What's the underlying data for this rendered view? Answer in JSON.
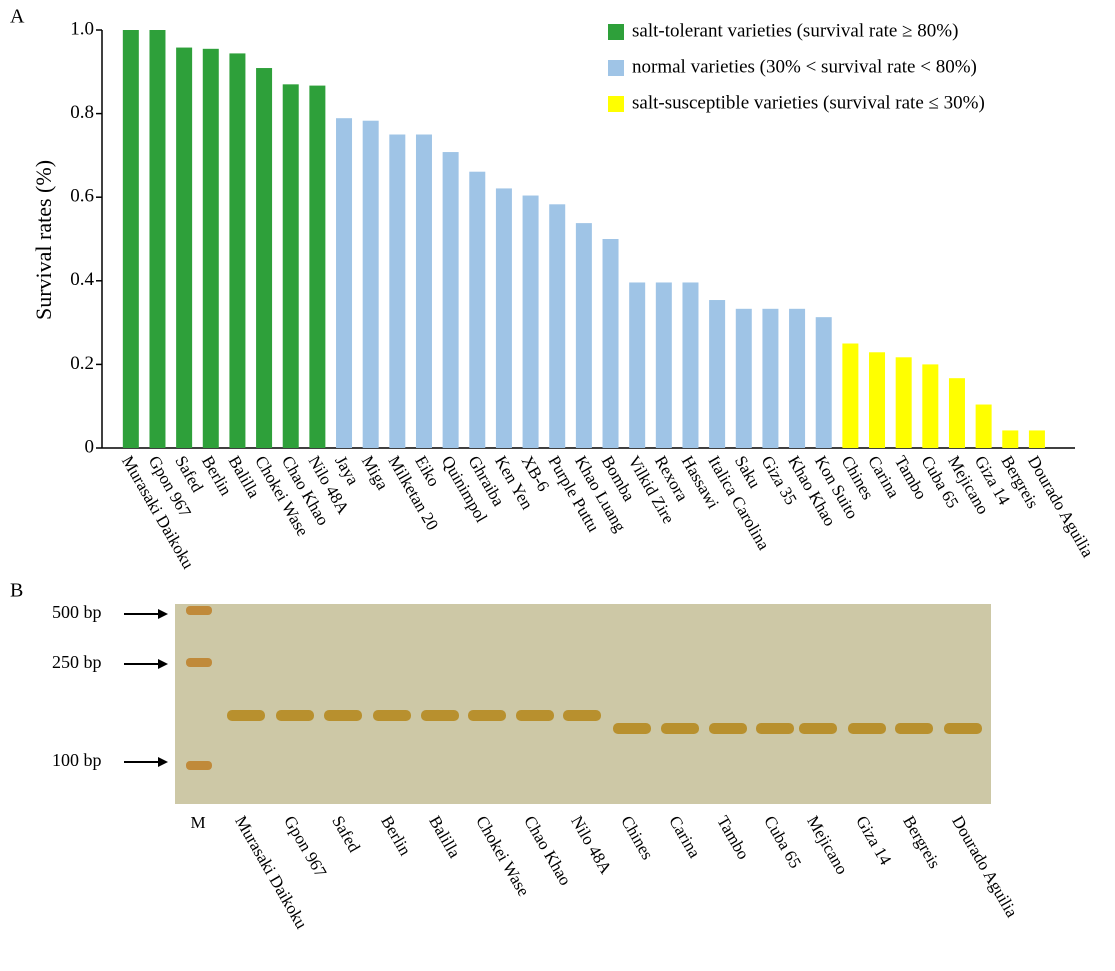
{
  "panel_labels": [
    "A",
    "B"
  ],
  "chart_data": {
    "type": "bar",
    "y_label": "Survival rates (%)",
    "categories": [
      "Murasaki Daikoku",
      "Gpon 967",
      "Safed",
      "Berlin",
      "Balilla",
      "Chokei Wase",
      "Chao Khao",
      "Nilo 48A",
      "Jaya",
      "Miga",
      "Milketan 20",
      "Eiko",
      "Quinimpol",
      "Ghraiba",
      "Ken Yen",
      "XB-6",
      "Purple Puttu",
      "Khao Luang",
      "Bomba",
      "Vilkid Zire",
      "Rexora",
      "Hassawi",
      "Italica Carolina",
      "Saku",
      "Giza 35",
      "Khao Khao",
      "Kon Suito",
      "Chines",
      "Carina",
      "Tambo",
      "Cuba 65",
      "Mejicano",
      "Giza 14",
      "Bergreis",
      "Dourado Aguilia"
    ],
    "series": [
      {
        "name": "salt-tolerant varieties (survival rate ≥ 80%)",
        "color": "#2ea03a",
        "values": [
          1.0,
          1.0,
          0.958,
          0.955,
          0.944,
          0.909,
          0.87,
          0.867,
          null,
          null,
          null,
          null,
          null,
          null,
          null,
          null,
          null,
          null,
          null,
          null,
          null,
          null,
          null,
          null,
          null,
          null,
          null,
          null,
          null,
          null,
          null,
          null,
          null,
          null,
          null
        ]
      },
      {
        "name": "normal varieties (30% < survival rate < 80%)",
        "color": "#9fc4e6",
        "values": [
          null,
          null,
          null,
          null,
          null,
          null,
          null,
          null,
          0.789,
          0.783,
          0.75,
          0.75,
          0.708,
          0.661,
          0.621,
          0.604,
          0.583,
          0.538,
          0.5,
          0.396,
          0.396,
          0.396,
          0.354,
          0.333,
          0.333,
          0.333,
          0.313,
          null,
          null,
          null,
          null,
          null,
          null,
          null,
          null
        ]
      },
      {
        "name": "salt-susceptible varieties (survival rate ≤ 30%)",
        "color": "#ffff00",
        "values": [
          null,
          null,
          null,
          null,
          null,
          null,
          null,
          null,
          null,
          null,
          null,
          null,
          null,
          null,
          null,
          null,
          null,
          null,
          null,
          null,
          null,
          null,
          null,
          null,
          null,
          null,
          null,
          0.25,
          0.229,
          0.217,
          0.2,
          0.167,
          0.104,
          0.042,
          0.042
        ]
      }
    ],
    "ylim": [
      0,
      1.0
    ],
    "yticks": [
      0,
      0.2,
      0.4,
      0.6,
      0.8,
      {
        "value": 1.0,
        "label": "1.0"
      }
    ],
    "legend": "top-right"
  },
  "gel": {
    "markers": [
      "500 bp",
      "250 bp",
      "100 bp"
    ],
    "lanes": [
      "M",
      "Murasaki Daikoku",
      "Gpon 967",
      "Safed",
      "Berlin",
      "Balilla",
      "Chokei Wase",
      "Chao Khao",
      "Nilo 48A",
      "Chines",
      "Carina",
      "Tambo",
      "Cuba 65",
      "Mejicano",
      "Giza 14",
      "Bergreis",
      "Dourado Aguilia"
    ]
  }
}
